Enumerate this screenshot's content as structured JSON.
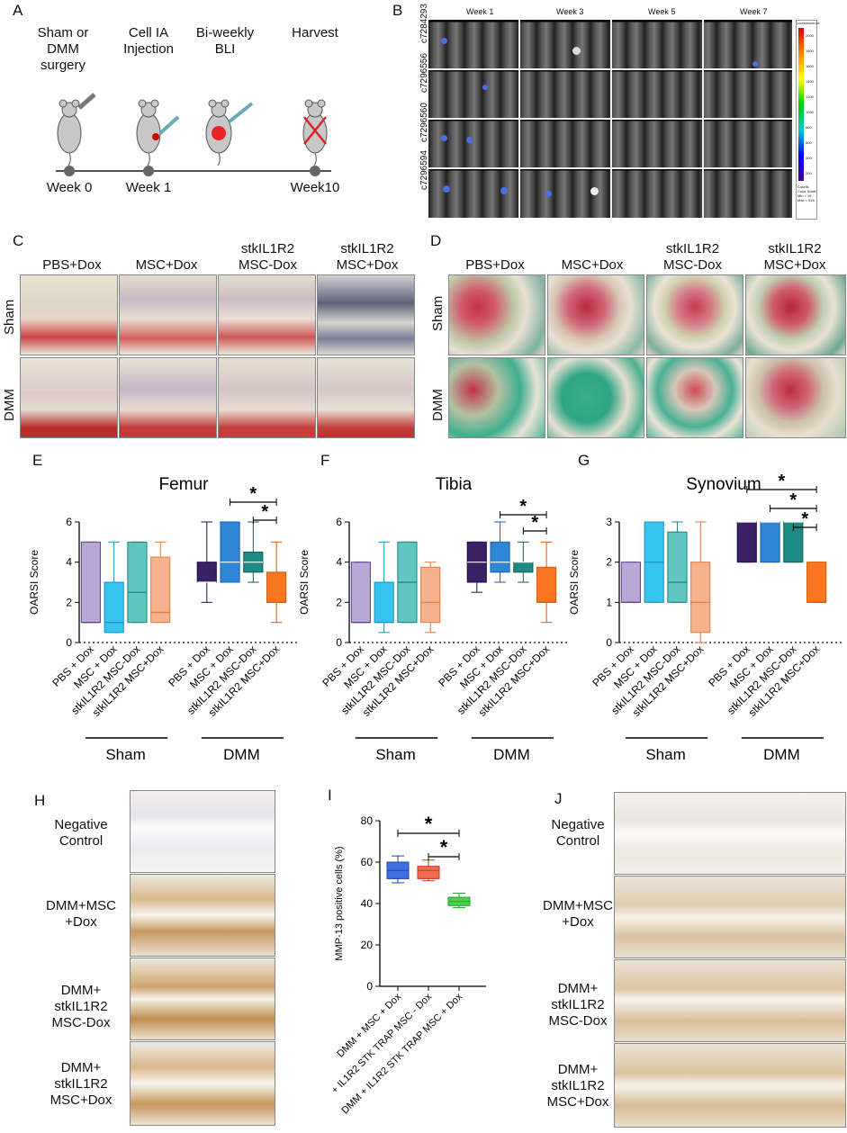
{
  "panels": {
    "A": "A",
    "B": "B",
    "C": "C",
    "D": "D",
    "E": "E",
    "F": "F",
    "G": "G",
    "H": "H",
    "I": "I",
    "J": "J"
  },
  "panelA": {
    "steps": [
      "Sham or\nDMM\nsurgery",
      "Cell IA\nInjection",
      "Bi-weekly\nBLI",
      "Harvest"
    ],
    "timepoints": [
      "Week 0",
      "Week 1",
      "Week10"
    ]
  },
  "panelB": {
    "weeks": [
      "Week 1",
      "Week 3",
      "Week 5",
      "Week 7"
    ],
    "rows": [
      "c7284293",
      "c7296556",
      "c7296560",
      "c7296594"
    ],
    "colorbar_title": "Luminescence",
    "colorbar_ticks": [
      "2000",
      "1800",
      "1600",
      "1400",
      "1200",
      "1000",
      "800",
      "600",
      "400",
      "200"
    ],
    "colorbar_foot": [
      "Counts",
      "Color Scale",
      "Min = 15",
      "Max = 516"
    ]
  },
  "panelC": {
    "columns": [
      "PBS+Dox",
      "MSC+Dox",
      "stkIL1R2\nMSC-Dox",
      "stkIL1R2\nMSC+Dox"
    ],
    "rows": [
      "Sham",
      "DMM"
    ]
  },
  "panelD": {
    "columns": [
      "PBS+Dox",
      "MSC+Dox",
      "stkIL1R2\nMSC-Dox",
      "stkIL1R2\nMSC+Dox"
    ],
    "rows": [
      "Sham",
      "DMM"
    ]
  },
  "group_labels": {
    "sham": "Sham",
    "dmm": "DMM"
  },
  "chart_data": [
    {
      "type": "box",
      "title": "Femur",
      "ylabel": "OARSI Score",
      "ylim": [
        0,
        6
      ],
      "yticks": [
        "0",
        "2",
        "4",
        "6"
      ],
      "categories": [
        "PBS + Dox",
        "MSC + Dox",
        "stkIL1R2 MSC-Dox",
        "stkIL1R2 MSC+Dox",
        "PBS + Dox",
        "MSC + Dox",
        "stkIL1R2 MSC-Dox",
        "stkIL1R2 MSC+Dox"
      ],
      "groups": [
        "Sham",
        "DMM"
      ],
      "boxes": [
        {
          "min": 1,
          "q1": 1,
          "median": 1,
          "q3": 5,
          "max": 5
        },
        {
          "min": 0.5,
          "q1": 0.5,
          "median": 1,
          "q3": 3,
          "max": 5
        },
        {
          "min": 1,
          "q1": 1,
          "median": 2.5,
          "q3": 5,
          "max": 5
        },
        {
          "min": 1,
          "q1": 1,
          "median": 1.5,
          "q3": 4.25,
          "max": 5
        },
        {
          "min": 2,
          "q1": 3,
          "median": 3,
          "q3": 4,
          "max": 6
        },
        {
          "min": 3,
          "q1": 3,
          "median": 4,
          "q3": 6,
          "max": 6
        },
        {
          "min": 3,
          "q1": 3.5,
          "median": 4,
          "q3": 4.5,
          "max": 6
        },
        {
          "min": 1,
          "q1": 2,
          "median": 2,
          "q3": 3.5,
          "max": 5
        }
      ],
      "significance": [
        "*",
        "*"
      ]
    },
    {
      "type": "box",
      "title": "Tibia",
      "ylabel": "OARSI Score",
      "ylim": [
        0,
        6
      ],
      "yticks": [
        "0",
        "2",
        "4",
        "6"
      ],
      "categories": [
        "PBS + Dox",
        "MSC + Dox",
        "stkIL1R2 MSC-Dox",
        "stkIL1R2 MSC+Dox",
        "PBS + Dox",
        "MSC + Dox",
        "stkIL1R2 MSC-Dox",
        "stkIL1R2 MSC+Dox"
      ],
      "groups": [
        "Sham",
        "DMM"
      ],
      "boxes": [
        {
          "min": 1,
          "q1": 1,
          "median": 1,
          "q3": 4,
          "max": 4
        },
        {
          "min": 0.5,
          "q1": 1,
          "median": 1,
          "q3": 3,
          "max": 5
        },
        {
          "min": 1,
          "q1": 1,
          "median": 3,
          "q3": 5,
          "max": 5
        },
        {
          "min": 0.5,
          "q1": 1,
          "median": 2,
          "q3": 3.75,
          "max": 4
        },
        {
          "min": 2.5,
          "q1": 3,
          "median": 4,
          "q3": 5,
          "max": 5
        },
        {
          "min": 3,
          "q1": 3.5,
          "median": 4,
          "q3": 5,
          "max": 6
        },
        {
          "min": 3,
          "q1": 3.5,
          "median": 4,
          "q3": 4,
          "max": 5
        },
        {
          "min": 1,
          "q1": 2,
          "median": 2,
          "q3": 3.75,
          "max": 5
        }
      ],
      "significance": [
        "*",
        "*"
      ]
    },
    {
      "type": "box",
      "title": "Synovium",
      "ylabel": "OARSI Score",
      "ylim": [
        0,
        3
      ],
      "yticks": [
        "0",
        "1",
        "2",
        "3"
      ],
      "categories": [
        "PBS + Dox",
        "MSC + Dox",
        "stkIL1R2 MSC-Dox",
        "stkIL1R2 MSC+Dox",
        "PBS + Dox",
        "MSC + Dox",
        "stkIL1R2 MSC-Dox",
        "stkIL1R2 MSC+Dox"
      ],
      "groups": [
        "Sham",
        "DMM"
      ],
      "boxes": [
        {
          "min": 1,
          "q1": 1,
          "median": 1,
          "q3": 2,
          "max": 2
        },
        {
          "min": 1,
          "q1": 1,
          "median": 2,
          "q3": 3,
          "max": 3
        },
        {
          "min": 1,
          "q1": 1,
          "median": 1.5,
          "q3": 2.75,
          "max": 3
        },
        {
          "min": 0,
          "q1": 0.25,
          "median": 1,
          "q3": 2,
          "max": 3
        },
        {
          "min": 2,
          "q1": 2,
          "median": 3,
          "q3": 3,
          "max": 3
        },
        {
          "min": 2,
          "q1": 2,
          "median": 3,
          "q3": 3,
          "max": 3
        },
        {
          "min": 2,
          "q1": 2,
          "median": 3,
          "q3": 3,
          "max": 3
        },
        {
          "min": 1,
          "q1": 1,
          "median": 1,
          "q3": 2,
          "max": 2
        }
      ],
      "significance": [
        "*",
        "*",
        "*"
      ]
    },
    {
      "type": "box",
      "title": "",
      "ylabel": "MMP-13 positive cells (%)",
      "ylim": [
        0,
        80
      ],
      "yticks": [
        "0",
        "20",
        "40",
        "60",
        "80"
      ],
      "categories": [
        "DMM + MSC + Dox",
        "DMM + IL1R2 STK TRAP MSC - Dox",
        "DMM + IL1R2 STK TRAP MSC + Dox"
      ],
      "boxes": [
        {
          "min": 50,
          "q1": 52,
          "median": 56,
          "q3": 60,
          "max": 63
        },
        {
          "min": 51,
          "q1": 52,
          "median": 56,
          "q3": 58,
          "max": 61
        },
        {
          "min": 38,
          "q1": 39,
          "median": 41,
          "q3": 43,
          "max": 45
        }
      ],
      "significance": [
        "*",
        "*"
      ]
    }
  ],
  "panelH": {
    "labels": [
      "Negative\nControl",
      "DMM+MSC\n+Dox",
      "DMM+\nstkIL1R2\nMSC-Dox",
      "DMM+\nstkIL1R2\nMSC+Dox"
    ]
  },
  "panelJ": {
    "labels": [
      "Negative\nControl",
      "DMM+MSC\n+Dox",
      "DMM+\nstkIL1R2\nMSC-Dox",
      "DMM+\nstkIL1R2\nMSC+Dox"
    ]
  }
}
